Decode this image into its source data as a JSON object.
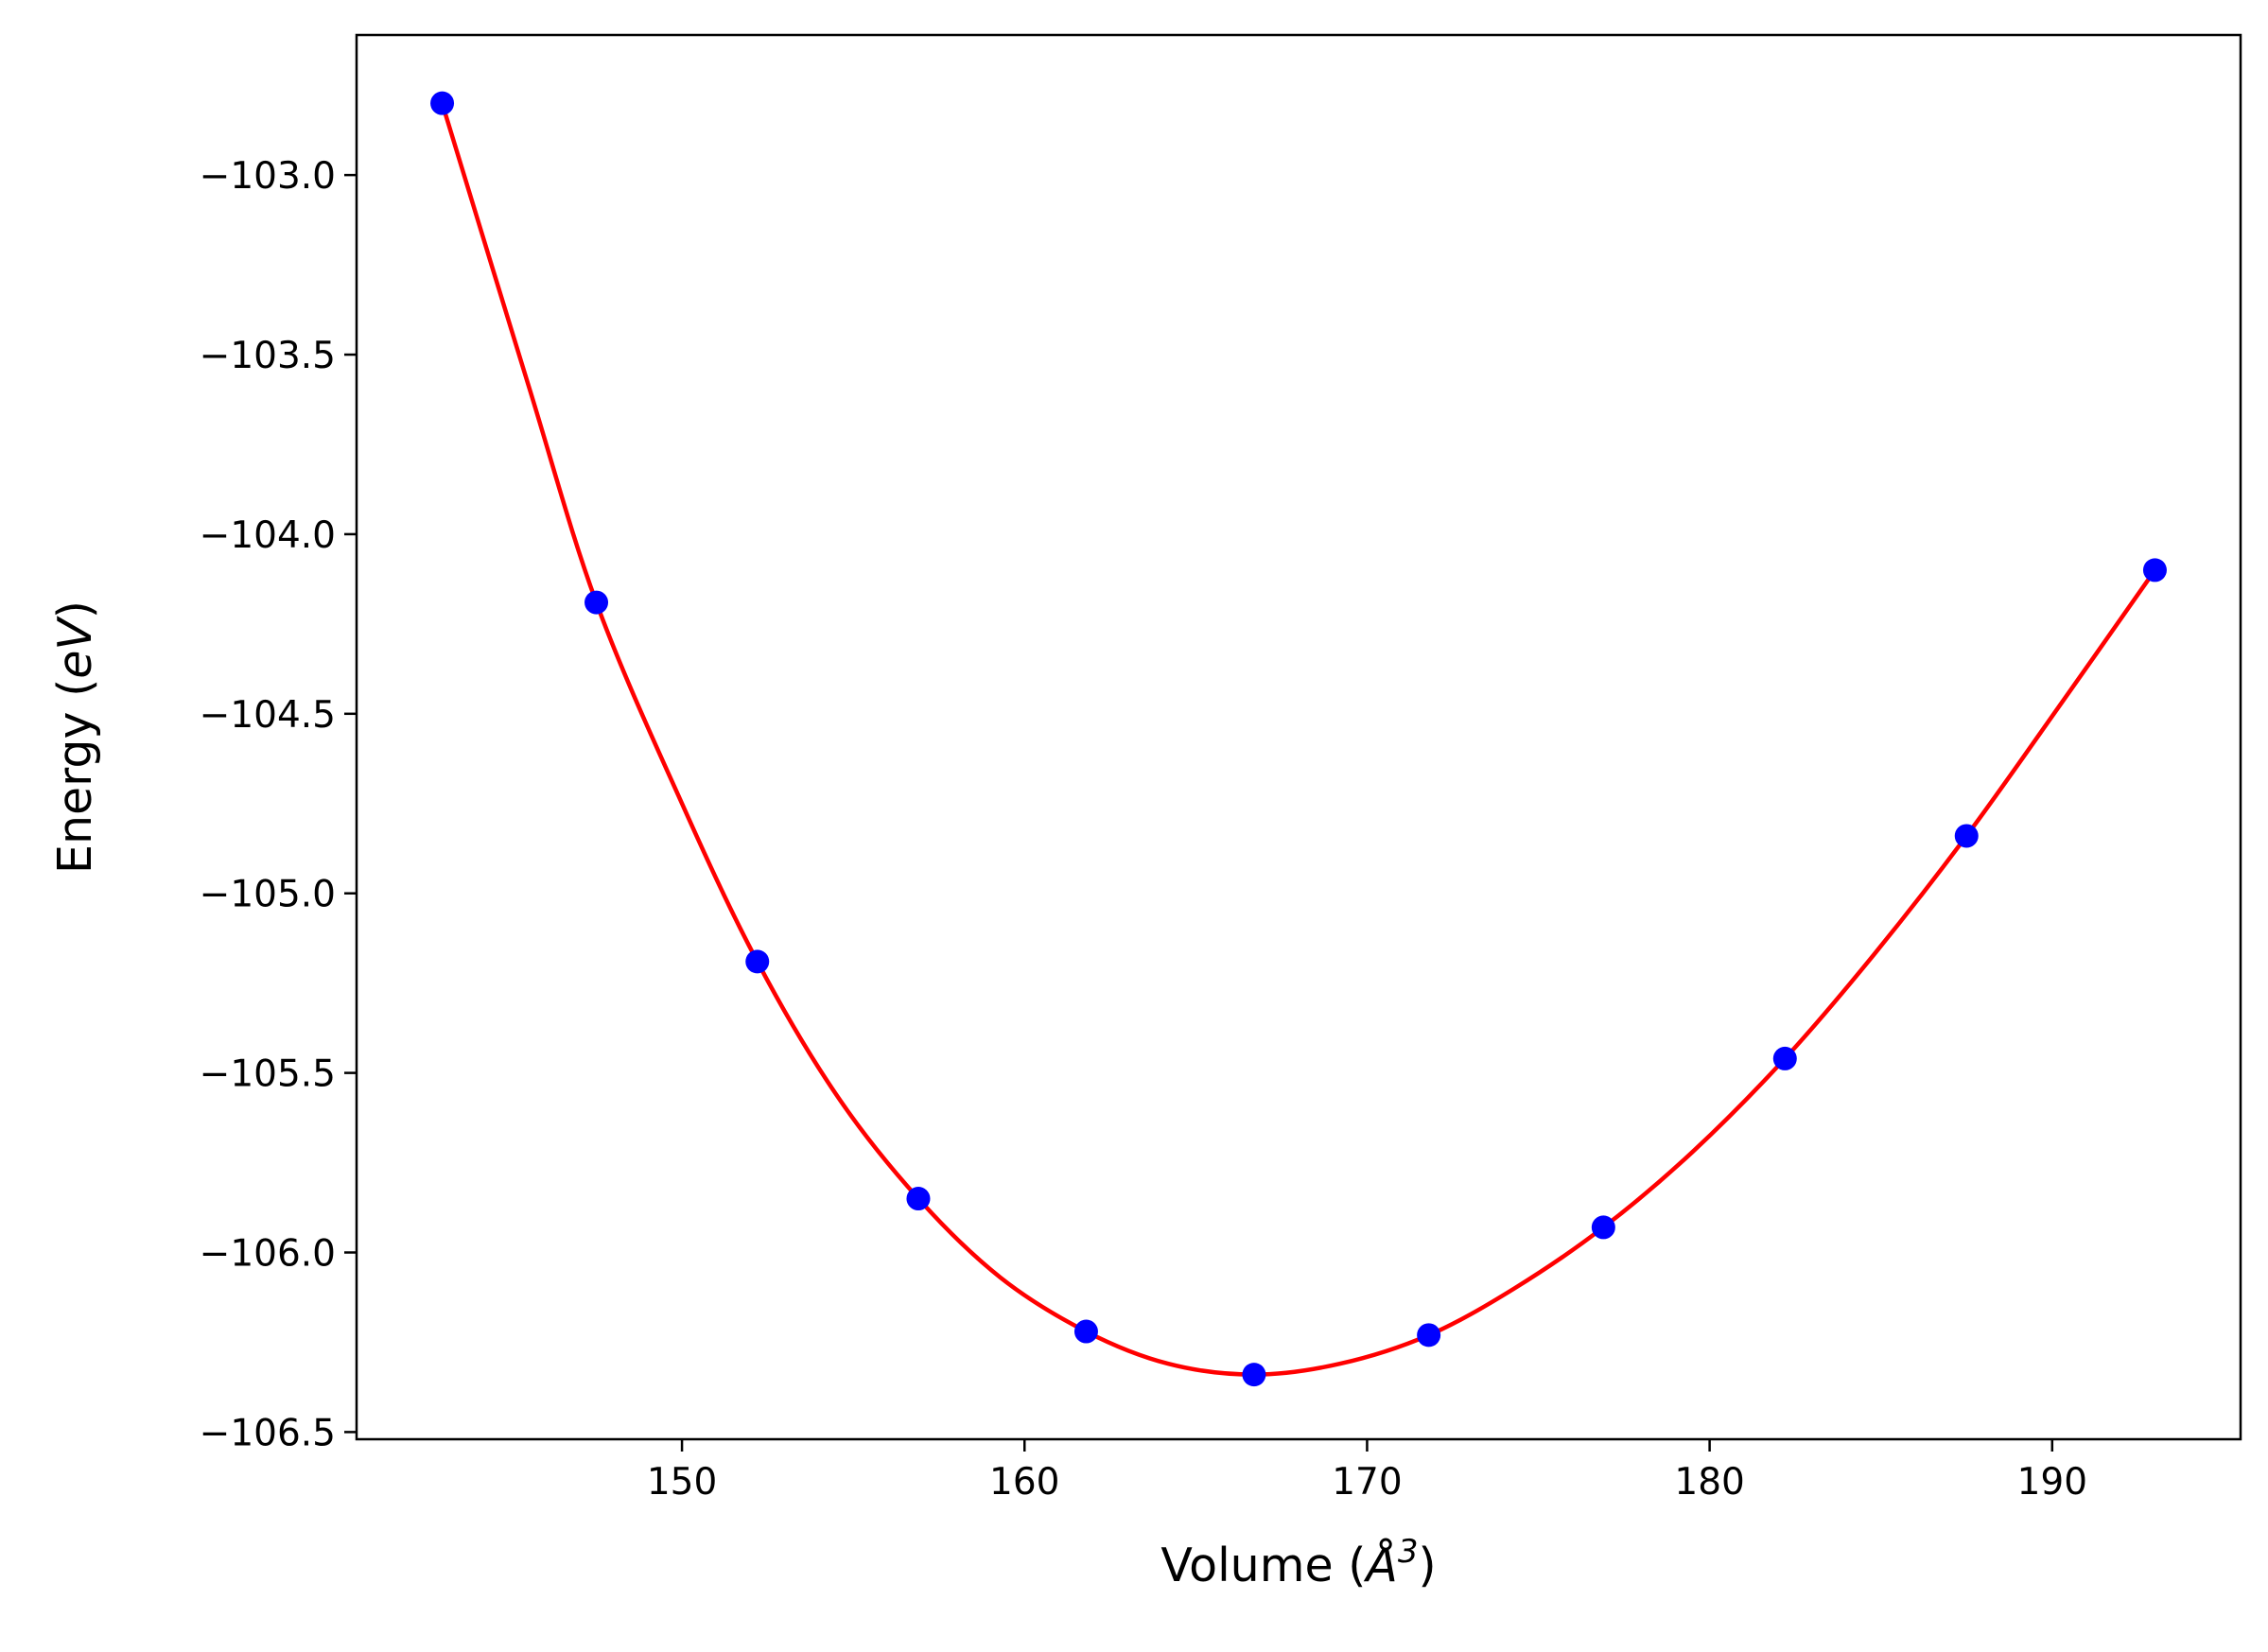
{
  "chart_data": {
    "type": "scatter",
    "title": "",
    "xlabel": "Volume (Å³)",
    "ylabel": "Energy (eV)",
    "xlabel_parts": {
      "prefix": "Volume (",
      "symbol": "Å",
      "sup": "3",
      "suffix": ")"
    },
    "ylabel_parts": {
      "prefix": "Energy (",
      "symbol": "eV",
      "suffix": ")"
    },
    "xlim": [
      140.5,
      195.5
    ],
    "ylim": [
      -106.52,
      -102.61
    ],
    "xticks": [
      150,
      160,
      170,
      180,
      190
    ],
    "xtick_labels": [
      "150",
      "160",
      "170",
      "180",
      "190"
    ],
    "yticks": [
      -103.0,
      -103.5,
      -104.0,
      -104.5,
      -105.0,
      -105.5,
      -106.0,
      -106.5
    ],
    "ytick_labels": [
      "−103.0",
      "−103.5",
      "−104.0",
      "−104.5",
      "−105.0",
      "−105.5",
      "−106.0",
      "−106.5"
    ],
    "grid": false,
    "legend": "none",
    "series": [
      {
        "kind": "points",
        "color": "#0000ff",
        "x": [
          143.0,
          147.5,
          152.2,
          156.9,
          161.8,
          166.7,
          171.8,
          176.9,
          182.2,
          187.5,
          193.0
        ],
        "y": [
          -102.8,
          -104.19,
          -105.19,
          -105.85,
          -106.22,
          -106.34,
          -106.23,
          -105.93,
          -105.46,
          -104.84,
          -104.1
        ]
      },
      {
        "kind": "fit-curve",
        "color": "#ff0000",
        "x": [
          143.0,
          145.5,
          147.5,
          150.0,
          152.2,
          154.5,
          156.9,
          159.3,
          161.8,
          164.2,
          166.7,
          169.2,
          171.8,
          174.3,
          176.9,
          179.5,
          182.2,
          184.8,
          187.5,
          190.2,
          193.0
        ],
        "y": [
          -102.8,
          -103.58,
          -104.19,
          -104.75,
          -105.19,
          -105.56,
          -105.85,
          -106.07,
          -106.22,
          -106.31,
          -106.34,
          -106.31,
          -106.23,
          -106.1,
          -105.93,
          -105.72,
          -105.46,
          -105.17,
          -104.84,
          -104.48,
          -104.1
        ]
      }
    ]
  }
}
